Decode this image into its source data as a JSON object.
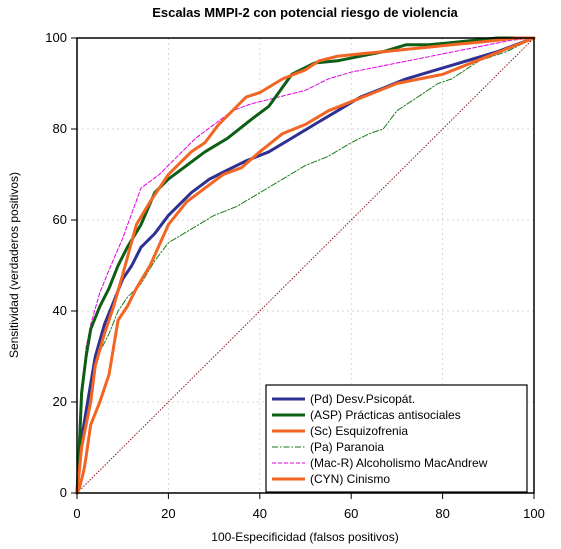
{
  "chart_data": {
    "type": "line",
    "title": "Escalas MMPI-2 con potencial riesgo de violencia",
    "xlabel": "100-Especificidad (falsos positivos)",
    "ylabel": "Sensitividad (verdaderos positivos)",
    "xlim": [
      0,
      100
    ],
    "ylim": [
      0,
      100
    ],
    "x_ticks": [
      0,
      20,
      40,
      60,
      80,
      100
    ],
    "y_ticks": [
      0,
      20,
      40,
      60,
      80,
      100
    ],
    "grid": true,
    "legend_position": "bottom-right",
    "reference_line": {
      "x": [
        0,
        100
      ],
      "y": [
        0,
        100
      ],
      "color": "#8b1a1a"
    },
    "series": [
      {
        "name": "(Pd) Desv.Psicopát.",
        "color": "#2e3192",
        "style": "solid",
        "weight": "thick",
        "x": [
          0,
          0.5,
          1,
          2,
          3,
          4,
          6,
          8,
          10,
          12,
          14,
          17,
          20,
          25,
          29,
          33,
          37,
          42,
          47,
          52,
          57,
          62,
          67,
          72,
          77,
          82,
          87,
          92,
          96,
          100
        ],
        "y": [
          0,
          7,
          12,
          18,
          24,
          30,
          37,
          42,
          47,
          50,
          54,
          57,
          61,
          66,
          69,
          71,
          73,
          75,
          78,
          81,
          84,
          87,
          89,
          91,
          92.5,
          94,
          95.5,
          97,
          98.5,
          100
        ]
      },
      {
        "name": "(ASP) Prácticas antisociales",
        "color": "#0b5e14",
        "style": "solid",
        "weight": "thick",
        "x": [
          0,
          0.5,
          1,
          2,
          3,
          5,
          7,
          9,
          11,
          14,
          17,
          20,
          24,
          28,
          33,
          38,
          42,
          47,
          52,
          57,
          62,
          67,
          72,
          77,
          82,
          87,
          92,
          96,
          100
        ],
        "y": [
          0,
          10,
          22,
          30,
          36,
          41,
          45,
          50,
          54,
          59,
          66,
          69,
          72,
          75,
          78,
          82,
          85,
          92,
          94.5,
          95,
          96,
          97,
          98.5,
          98.5,
          99,
          99.5,
          100,
          100,
          100
        ]
      },
      {
        "name": "(Sc) Esquizofrenia",
        "color": "#f26522",
        "style": "solid",
        "weight": "thick",
        "x": [
          0,
          0.5,
          1,
          2,
          3,
          4,
          6,
          8,
          10,
          13,
          16,
          18,
          20,
          22,
          25,
          28,
          31,
          34,
          37,
          40,
          45,
          50,
          53,
          57,
          62,
          67,
          72,
          77,
          82,
          87,
          92,
          96,
          100
        ],
        "y": [
          0,
          5,
          10,
          15,
          20,
          28,
          35,
          41,
          48,
          59,
          64,
          67,
          70,
          72,
          75,
          77,
          81,
          84,
          87,
          88,
          91,
          93,
          95,
          96,
          96.5,
          97,
          97.5,
          98,
          98.5,
          99,
          99.5,
          100,
          100
        ]
      },
      {
        "name": "(Pa) Paranoia",
        "color": "#1a7a1a",
        "style": "dashdot",
        "weight": "thin",
        "x": [
          0,
          1,
          2,
          3,
          5,
          7,
          9,
          11,
          14,
          17,
          20,
          25,
          30,
          35,
          40,
          45,
          50,
          55,
          60,
          64,
          67,
          70,
          73,
          76,
          79,
          82,
          85,
          88,
          91,
          94,
          97,
          100
        ],
        "y": [
          0,
          12,
          18,
          24,
          31,
          35,
          40,
          43,
          46,
          51,
          55,
          58,
          61,
          63,
          66,
          69,
          72,
          74,
          77,
          79,
          80,
          84,
          86,
          88,
          90,
          91,
          93,
          95,
          96,
          97,
          98.5,
          100
        ]
      },
      {
        "name": "(Mac-R) Alcoholismo MacAndrew",
        "color": "#e000e0",
        "style": "dashed",
        "weight": "thin",
        "x": [
          0,
          0.5,
          1,
          2,
          3,
          5,
          7,
          10,
          14,
          18,
          22,
          26,
          30,
          34,
          38,
          42,
          46,
          50,
          55,
          60,
          65,
          70,
          75,
          80,
          85,
          90,
          95,
          100
        ],
        "y": [
          0,
          15,
          22,
          32,
          37,
          44,
          49,
          56,
          67,
          70,
          74,
          78,
          81,
          84,
          85.5,
          86.5,
          87.5,
          88.5,
          91,
          92.5,
          93.5,
          94.5,
          95.5,
          96.5,
          97.5,
          98.5,
          99.5,
          100
        ]
      },
      {
        "name": "(CYN) Cinismo",
        "color": "#f26522",
        "style": "solid",
        "weight": "thick",
        "x": [
          0,
          0.5,
          1,
          1.5,
          2,
          3,
          5,
          7,
          9,
          11,
          13,
          16,
          20,
          24,
          28,
          32,
          36,
          40,
          45,
          50,
          55,
          60,
          65,
          70,
          75,
          80,
          85,
          90,
          95,
          100
        ],
        "y": [
          0,
          1,
          3,
          5,
          8,
          15,
          20,
          26,
          38,
          41,
          45,
          50,
          59,
          64,
          67,
          70,
          71.5,
          75,
          79,
          81,
          84,
          86,
          88,
          90,
          91,
          92,
          94,
          96,
          98,
          100
        ]
      }
    ]
  }
}
